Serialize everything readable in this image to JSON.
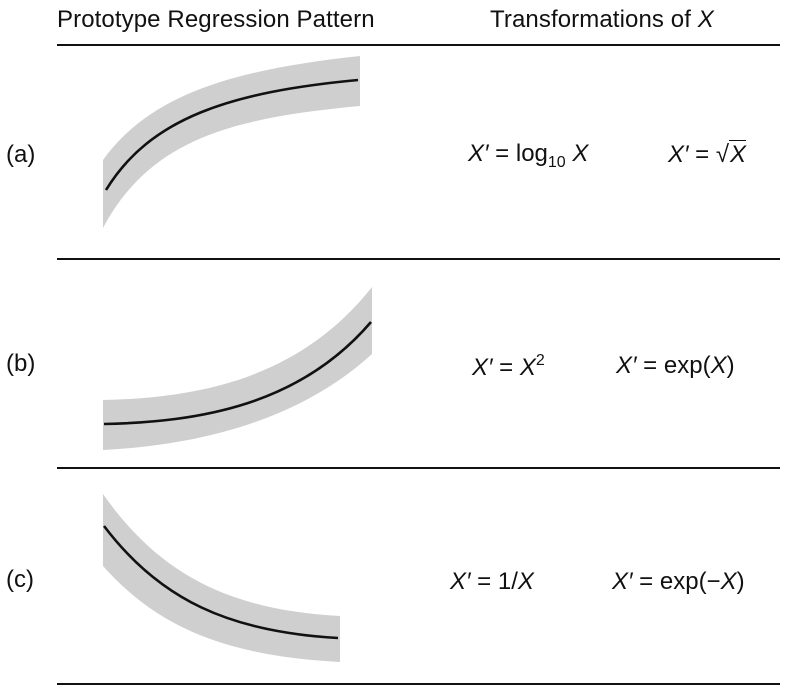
{
  "header": {
    "left": "Prototype Regression Pattern",
    "right_text": "Transformations of ",
    "right_var": "X"
  },
  "rows": [
    {
      "label": "(a)",
      "eq1": {
        "lhs": "X′",
        "op": " = log",
        "sub": "10",
        "arg": " X"
      },
      "eq2": {
        "lhs": "X′",
        "op": " = √",
        "arg": "X"
      }
    },
    {
      "label": "(b)",
      "eq1": {
        "lhs": "X′",
        "op": " = ",
        "var": "X",
        "sup": "2"
      },
      "eq2": {
        "lhs": "X′",
        "op": " = exp(",
        "var": "X",
        "close": ")"
      }
    },
    {
      "label": "(c)",
      "eq1": {
        "lhs": "X′",
        "op": " = 1/",
        "var": "X"
      },
      "eq2": {
        "lhs": "X′",
        "op": " = exp(−",
        "var": "X",
        "close": ")"
      }
    }
  ],
  "colors": {
    "band": "#cfcfcf",
    "line": "#111111"
  }
}
